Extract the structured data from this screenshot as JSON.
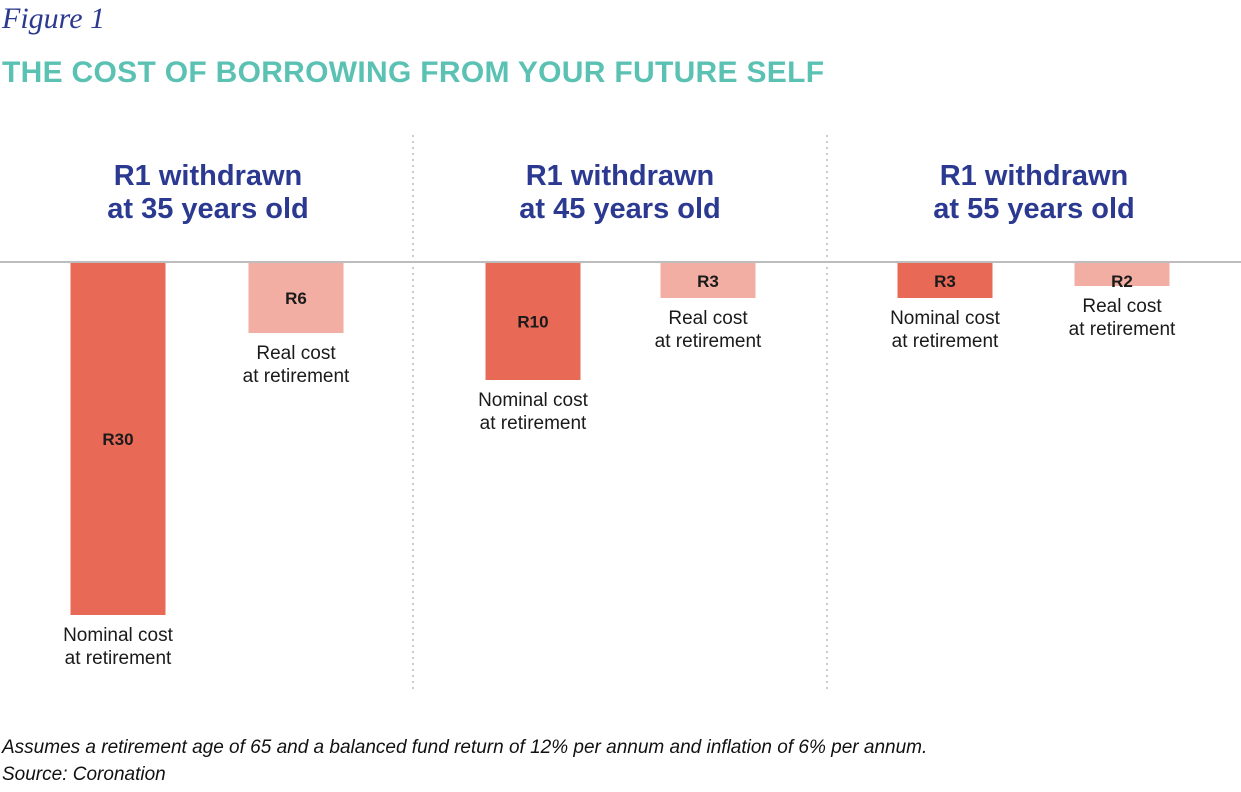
{
  "figure_label": "Figure 1",
  "title": "THE COST OF BORROWING FROM YOUR FUTURE SELF",
  "colors": {
    "nominal": "#e86a56",
    "real": "#f2aea2",
    "title": "#5bc2b3",
    "heading": "#2b3990"
  },
  "chart_data": {
    "type": "bar",
    "title": "THE COST OF BORROWING FROM YOUR FUTURE SELF",
    "orientation": "downward from baseline",
    "panels": [
      {
        "heading": [
          "R1 withdrawn",
          "at 35 years old"
        ],
        "bars": [
          {
            "series": "nominal",
            "label": [
              "Nominal cost",
              "at retirement"
            ],
            "value": 30,
            "value_label": "R30"
          },
          {
            "series": "real",
            "label": [
              "Real cost",
              "at retirement"
            ],
            "value": 6,
            "value_label": "R6"
          }
        ]
      },
      {
        "heading": [
          "R1 withdrawn",
          "at 45 years old"
        ],
        "bars": [
          {
            "series": "nominal",
            "label": [
              "Nominal cost",
              "at retirement"
            ],
            "value": 10,
            "value_label": "R10"
          },
          {
            "series": "real",
            "label": [
              "Real cost",
              "at retirement"
            ],
            "value": 3,
            "value_label": "R3"
          }
        ]
      },
      {
        "heading": [
          "R1 withdrawn",
          "at 55 years old"
        ],
        "bars": [
          {
            "series": "nominal",
            "label": [
              "Nominal cost",
              "at retirement"
            ],
            "value": 3,
            "value_label": "R3"
          },
          {
            "series": "real",
            "label": [
              "Real cost",
              "at retirement"
            ],
            "value": 2,
            "value_label": "R2"
          }
        ]
      }
    ]
  },
  "footnote": "Assumes a retirement age of 65 and a balanced fund return of 12% per annum and inflation of 6% per annum.",
  "source": "Source: Coronation"
}
